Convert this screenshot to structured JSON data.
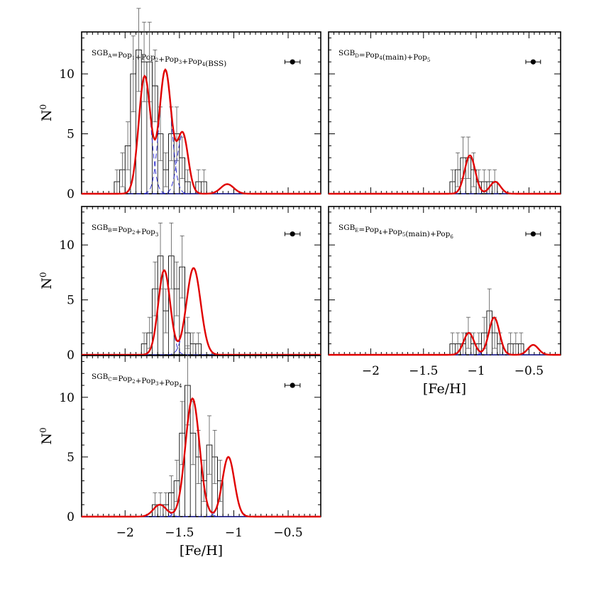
{
  "axis_labels": {
    "y": "N",
    "y_sup": "0",
    "x": "[Fe/H]"
  },
  "chart_data": [
    {
      "type": "histogram",
      "label_parts": [
        [
          "SGB",
          "A"
        ],
        [
          "=Pop",
          "1"
        ],
        [
          "+Pop",
          "2"
        ],
        [
          "+Pop",
          "3"
        ],
        [
          "+Pop",
          "4"
        ],
        [
          "(BSS)",
          ""
        ]
      ],
      "xlim": [
        -2.4,
        -0.2
      ],
      "ylim": [
        0,
        13.5
      ],
      "xticks": [
        -2,
        -1.5,
        -1,
        -0.5
      ],
      "yticks": [
        0,
        5,
        10
      ],
      "ref_point": {
        "x": -0.46,
        "y": 11,
        "xerr": 0.07
      },
      "bins": {
        "start": -2.1,
        "width": 0.05,
        "counts": [
          1,
          2,
          4,
          10,
          12,
          11,
          11,
          9,
          5,
          2,
          5,
          5,
          3,
          1,
          0,
          1,
          1,
          0
        ]
      },
      "gaussians": [
        {
          "mu": -1.82,
          "sigma": 0.055,
          "amp": 9.8
        },
        {
          "mu": -1.63,
          "sigma": 0.055,
          "amp": 10.3
        },
        {
          "mu": -1.47,
          "sigma": 0.05,
          "amp": 5.0
        },
        {
          "mu": -1.06,
          "sigma": 0.06,
          "amp": 0.8
        }
      ]
    },
    {
      "type": "histogram",
      "label_parts": [
        [
          "SGB",
          "D"
        ],
        [
          "=Pop",
          "4"
        ],
        [
          "(main)+Pop",
          "5"
        ]
      ],
      "xlim": [
        -2.4,
        -0.2
      ],
      "ylim": [
        0,
        13.5
      ],
      "xticks": [
        -2,
        -1.5,
        -1,
        -0.5
      ],
      "yticks": [
        0,
        5,
        10
      ],
      "ref_point": {
        "x": -0.46,
        "y": 11,
        "xerr": 0.07
      },
      "bins": {
        "start": -1.25,
        "width": 0.05,
        "counts": [
          1,
          2,
          3,
          3,
          2,
          1,
          1,
          1,
          1
        ]
      },
      "gaussians": [
        {
          "mu": -1.06,
          "sigma": 0.05,
          "amp": 3.2
        },
        {
          "mu": -0.82,
          "sigma": 0.05,
          "amp": 1.0
        }
      ]
    },
    {
      "type": "histogram",
      "label_parts": [
        [
          "SGB",
          "B"
        ],
        [
          "=Pop",
          "2"
        ],
        [
          "+Pop",
          "3"
        ]
      ],
      "xlim": [
        -2.4,
        -0.2
      ],
      "ylim": [
        0,
        13.5
      ],
      "xticks": [
        -2,
        -1.5,
        -1,
        -0.5
      ],
      "yticks": [
        0,
        5,
        10
      ],
      "ref_point": {
        "x": -0.46,
        "y": 11,
        "xerr": 0.07
      },
      "bins": {
        "start": -1.85,
        "width": 0.05,
        "counts": [
          1,
          2,
          6,
          9,
          4,
          9,
          6,
          8,
          2,
          1,
          1,
          0
        ]
      },
      "gaussians": [
        {
          "mu": -1.64,
          "sigma": 0.055,
          "amp": 7.7
        },
        {
          "mu": -1.37,
          "sigma": 0.065,
          "amp": 7.9
        }
      ]
    },
    {
      "type": "histogram",
      "label_parts": [
        [
          "SGB",
          "E"
        ],
        [
          "=Pop",
          "4"
        ],
        [
          "+Pop",
          "5"
        ],
        [
          "(main)+Pop",
          "6"
        ]
      ],
      "xlim": [
        -2.4,
        -0.2
      ],
      "ylim": [
        0,
        13.5
      ],
      "xticks": [
        -2,
        -1.5,
        -1,
        -0.5
      ],
      "yticks": [
        0,
        5,
        10
      ],
      "ref_point": {
        "x": -0.46,
        "y": 11,
        "xerr": 0.07
      },
      "bins": {
        "start": -1.25,
        "width": 0.05,
        "counts": [
          1,
          1,
          1,
          2,
          1,
          1,
          2,
          4,
          2,
          1,
          0,
          1,
          1,
          1
        ]
      },
      "gaussians": [
        {
          "mu": -1.07,
          "sigma": 0.05,
          "amp": 2.0
        },
        {
          "mu": -0.83,
          "sigma": 0.05,
          "amp": 3.4
        },
        {
          "mu": -0.46,
          "sigma": 0.05,
          "amp": 0.9
        }
      ]
    },
    {
      "type": "histogram",
      "label_parts": [
        [
          "SGB",
          "C"
        ],
        [
          "=Pop",
          "2"
        ],
        [
          "+Pop",
          "3"
        ],
        [
          "+Pop",
          "4"
        ]
      ],
      "xlim": [
        -2.4,
        -0.2
      ],
      "ylim": [
        0,
        13.5
      ],
      "xticks": [
        -2,
        -1.5,
        -1,
        -0.5
      ],
      "yticks": [
        0,
        5,
        10
      ],
      "ref_point": {
        "x": -0.46,
        "y": 11,
        "xerr": 0.07
      },
      "bins": {
        "start": -1.75,
        "width": 0.05,
        "counts": [
          1,
          1,
          1,
          2,
          3,
          7,
          11,
          7,
          5,
          3,
          6,
          5,
          3,
          0
        ]
      },
      "gaussians": [
        {
          "mu": -1.68,
          "sigma": 0.06,
          "amp": 1.0
        },
        {
          "mu": -1.38,
          "sigma": 0.065,
          "amp": 9.9
        },
        {
          "mu": -1.05,
          "sigma": 0.055,
          "amp": 5.0
        }
      ]
    }
  ],
  "colors": {
    "fit": "#e00000",
    "component": "#1a1acc",
    "hist": "#000000"
  }
}
